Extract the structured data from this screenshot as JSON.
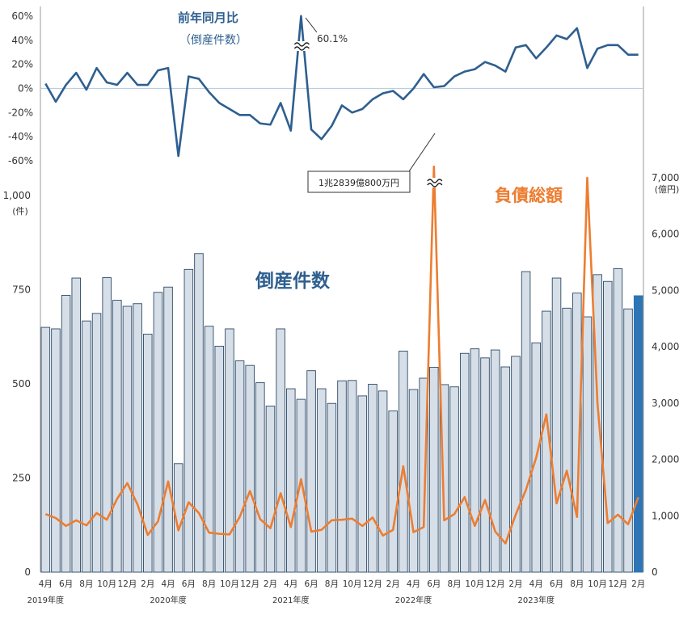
{
  "chart_data": [
    {
      "type": "line",
      "title": "前年同月比",
      "subtitle": "（倒産件数）",
      "ylim": [
        -60,
        60
      ],
      "y_ticks": [
        "60%",
        "40%",
        "20%",
        "0%",
        "-20%",
        "-40%",
        "-60%"
      ],
      "annotation": "60.1%",
      "grid": false,
      "series": [
        {
          "color": "#2e5f8f",
          "values": [
            4,
            -11,
            3,
            13,
            -1,
            17,
            5,
            3,
            13,
            3,
            3,
            15,
            17,
            -56,
            10,
            8,
            -3,
            -12,
            -17,
            -22,
            -22,
            -29,
            -30,
            -12,
            -35,
            60.1,
            -34,
            -42,
            -31,
            -14,
            -20,
            -17,
            -9,
            -4,
            -2,
            -9,
            0,
            12,
            1,
            2,
            10,
            14,
            16,
            22,
            19,
            14,
            34,
            36,
            25,
            34,
            44,
            41,
            50,
            17,
            33,
            36,
            36,
            28,
            28
          ]
        }
      ]
    },
    {
      "type": "bar",
      "series_label": "倒産件数",
      "line_label": "負債総額",
      "y_left_label": "(件)",
      "y_right_label": "(億円)",
      "ylim_left": [
        0,
        1000
      ],
      "ylim_right": [
        0,
        7000
      ],
      "y_left_ticks": [
        "0",
        "250",
        "500",
        "750",
        "1,000"
      ],
      "y_right_ticks": [
        "0",
        "1,000",
        "2,000",
        "3,000",
        "4,000",
        "5,000",
        "6,000",
        "7,000"
      ],
      "x_tick_labels": [
        "4月",
        "6月",
        "8月",
        "10月",
        "12月",
        "2月",
        "4月",
        "6月",
        "8月",
        "10月",
        "12月",
        "2月",
        "4月",
        "6月",
        "8月",
        "10月",
        "12月",
        "2月",
        "4月",
        "6月",
        "8月",
        "10月",
        "12月",
        "2月",
        "4月",
        "6月",
        "8月",
        "10月",
        "12月",
        "2月"
      ],
      "fiscal_year_labels": [
        "2019年度",
        "2020年度",
        "2021年度",
        "2022年度",
        "2023年度"
      ],
      "annotation": "1兆2839億800万円",
      "bar_color": "#d6dfe8",
      "bar_edge_color": "#2e4a66",
      "last_bar_color": "#2e75b6",
      "line_color": "#ed7d31",
      "bar_values": [
        650,
        646,
        735,
        781,
        667,
        687,
        782,
        722,
        706,
        713,
        632,
        743,
        757,
        288,
        804,
        846,
        653,
        600,
        646,
        561,
        549,
        503,
        441,
        646,
        487,
        459,
        535,
        487,
        448,
        508,
        509,
        468,
        499,
        481,
        428,
        587,
        485,
        515,
        544,
        498,
        492,
        581,
        593,
        569,
        590,
        545,
        573,
        798,
        609,
        693,
        781,
        701,
        741,
        678,
        790,
        772,
        806,
        699,
        734
      ],
      "line_values": [
        1030,
        960,
        820,
        920,
        830,
        1050,
        930,
        1300,
        1580,
        1200,
        660,
        900,
        1610,
        740,
        1240,
        1050,
        700,
        680,
        670,
        980,
        1440,
        940,
        780,
        1400,
        800,
        1650,
        720,
        750,
        920,
        930,
        950,
        820,
        970,
        650,
        750,
        1880,
        710,
        800,
        7800,
        920,
        1030,
        1330,
        820,
        1280,
        720,
        510,
        1020,
        1460,
        2030,
        2800,
        1220,
        1800,
        980,
        7000,
        3000,
        870,
        1020,
        850,
        1330
      ]
    }
  ]
}
